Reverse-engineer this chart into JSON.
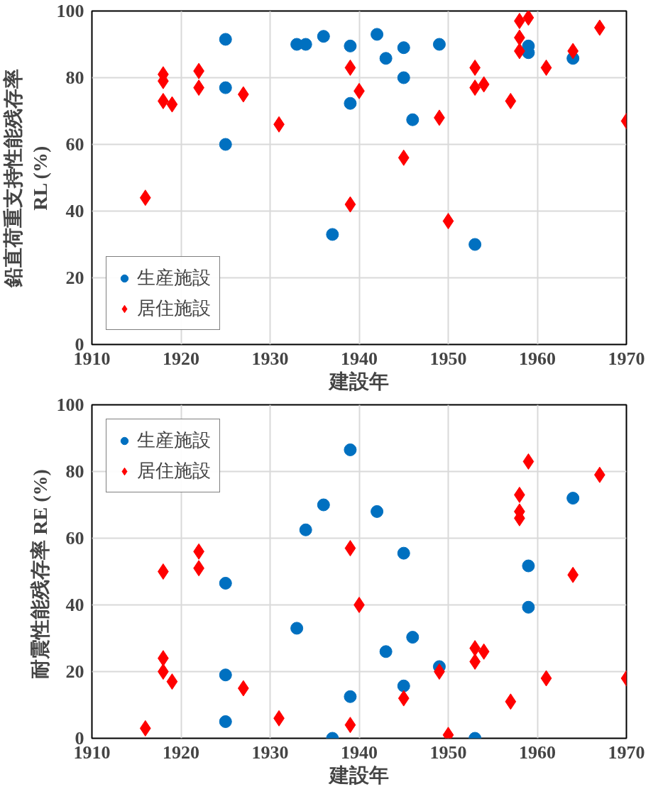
{
  "chart_data": [
    {
      "type": "scatter",
      "xlabel": "建設年",
      "ylabel": "鉛直荷重支持性能残存率\nRL (%)",
      "xlim": [
        1910,
        1970
      ],
      "xticks": [
        1910,
        1920,
        1930,
        1940,
        1950,
        1960,
        1970
      ],
      "ylim": [
        0,
        100
      ],
      "yticks": [
        0,
        20,
        40,
        60,
        80,
        100
      ],
      "grid": true,
      "legend": "bottom left",
      "series": [
        {
          "name": "生産施設",
          "color": "#0070c0",
          "marker": "circle",
          "x": [
            1925,
            1925,
            1925,
            1933,
            1934,
            1936,
            1939,
            1939,
            1937,
            1942,
            1943,
            1945,
            1945,
            1946,
            1949,
            1953,
            1959,
            1959,
            1964
          ],
          "values": [
            91.5,
            77,
            60,
            90,
            90,
            92.4,
            89.5,
            72.3,
            33,
            93,
            85.8,
            89,
            80,
            67.4,
            90,
            30,
            89.5,
            87.5,
            85.8
          ]
        },
        {
          "name": "居住施設",
          "color": "#ff0000",
          "marker": "diamond",
          "x": [
            1916,
            1918,
            1918,
            1918,
            1919,
            1922,
            1922,
            1927,
            1931,
            1939,
            1939,
            1940,
            1945,
            1949,
            1950,
            1953,
            1953,
            1954,
            1957,
            1958,
            1958,
            1958,
            1959,
            1961,
            1964,
            1967,
            1970
          ],
          "values": [
            44,
            81,
            79,
            73,
            72,
            82,
            77,
            75,
            66,
            83,
            42,
            76,
            56,
            68,
            37,
            83,
            77,
            78,
            73,
            97,
            92,
            88,
            98,
            83,
            88,
            95,
            67
          ]
        }
      ]
    },
    {
      "type": "scatter",
      "xlabel": "建設年",
      "ylabel": "耐震性能残存率  RE (%)",
      "xlim": [
        1910,
        1970
      ],
      "xticks": [
        1910,
        1920,
        1930,
        1940,
        1950,
        1960,
        1970
      ],
      "ylim": [
        0,
        100
      ],
      "yticks": [
        0,
        20,
        40,
        60,
        80,
        100
      ],
      "grid": true,
      "legend": "top left",
      "series": [
        {
          "name": "生産施設",
          "color": "#0070c0",
          "marker": "circle",
          "x": [
            1925,
            1925,
            1925,
            1933,
            1934,
            1936,
            1937,
            1939,
            1939,
            1942,
            1943,
            1945,
            1945,
            1946,
            1949,
            1953,
            1959,
            1959,
            1964
          ],
          "values": [
            5,
            19,
            46.5,
            33,
            62.5,
            70,
            0,
            86.5,
            12.5,
            68,
            26,
            55.5,
            15.7,
            30.3,
            21.5,
            0,
            51.7,
            39.3,
            72
          ]
        },
        {
          "name": "居住施設",
          "color": "#ff0000",
          "marker": "diamond",
          "x": [
            1916,
            1918,
            1918,
            1918,
            1919,
            1922,
            1922,
            1927,
            1931,
            1939,
            1939,
            1940,
            1945,
            1949,
            1950,
            1953,
            1953,
            1954,
            1957,
            1958,
            1958,
            1958,
            1959,
            1961,
            1964,
            1967,
            1970
          ],
          "values": [
            3,
            50,
            24,
            20,
            17,
            56,
            51,
            15,
            6,
            57,
            4,
            40,
            12,
            20,
            1,
            27,
            23,
            26,
            11,
            73,
            68,
            66,
            83,
            18,
            49,
            79,
            18
          ]
        }
      ]
    }
  ]
}
